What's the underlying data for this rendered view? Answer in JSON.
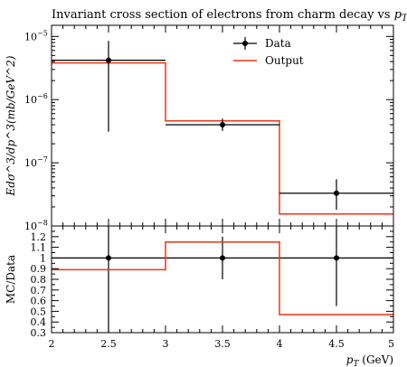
{
  "chart_data": {
    "type": "histogram-with-ratio",
    "title": "Invariant cross section of electrons from charm decay vs $p_T$",
    "title_parts": {
      "text": "Invariant cross section of electrons from charm decay vs ",
      "var": "p",
      "sub": "T"
    },
    "xlabel": "p_T (GeV)",
    "xlabel_parts": {
      "var": "p",
      "sub": "T",
      "unit": " (GeV)"
    },
    "xlim": [
      2,
      5
    ],
    "x_ticks": [
      "2",
      "2.5",
      "3",
      "3.5",
      "4",
      "4.5",
      "5"
    ],
    "x_tick_values": [
      2,
      2.5,
      3,
      3.5,
      4,
      4.5,
      5
    ],
    "main": {
      "ylabel": "Edσ^3/dp^3(mb/GeV^2)",
      "yscale": "log",
      "ylim": [
        1e-08,
        1.5e-05
      ],
      "y_ticks": [
        {
          "value": 1e-08,
          "base": "10",
          "exp": "−8"
        },
        {
          "value": 1e-07,
          "base": "10",
          "exp": "−7"
        },
        {
          "value": 1e-06,
          "base": "10",
          "exp": "−6"
        },
        {
          "value": 1e-05,
          "base": "10",
          "exp": "−5"
        }
      ],
      "legend": {
        "placement": "top-right",
        "entries": [
          {
            "label": "Data",
            "style": "marker-errorbar",
            "color": "#000000"
          },
          {
            "label": "Output",
            "style": "line",
            "color": "#ee3311"
          }
        ]
      },
      "series": [
        {
          "name": "Data",
          "color": "#000000",
          "bins": [
            {
              "x_low": 2,
              "x_high": 3,
              "x": 2.5,
              "y": 4.2e-06,
              "y_low": 3.1e-07,
              "y_high": 8.5e-06
            },
            {
              "x_low": 3,
              "x_high": 4,
              "x": 3.5,
              "y": 4e-07,
              "y_low": 3.2e-07,
              "y_high": 5e-07
            },
            {
              "x_low": 4,
              "x_high": 5,
              "x": 4.5,
              "y": 3.3e-08,
              "y_low": 1.8e-08,
              "y_high": 5.5e-08
            }
          ]
        },
        {
          "name": "Output",
          "color": "#ee3311",
          "bins": [
            {
              "x_low": 2,
              "x_high": 3,
              "y": 3.8e-06
            },
            {
              "x_low": 3,
              "x_high": 4,
              "y": 4.6e-07
            },
            {
              "x_low": 4,
              "x_high": 5,
              "y": 1.55e-08
            }
          ]
        }
      ]
    },
    "ratio": {
      "ylabel": "MC/Data",
      "ylim": [
        0.3,
        1.3
      ],
      "y_ticks": [
        "0.3",
        "0.4",
        "0.5",
        "0.6",
        "0.7",
        "0.8",
        "0.9",
        "1",
        "1.1",
        "1.2"
      ],
      "y_tick_values": [
        0.3,
        0.4,
        0.5,
        0.6,
        0.7,
        0.8,
        0.9,
        1.0,
        1.1,
        1.2
      ],
      "reference": 1.0,
      "data_bands": [
        {
          "x": 2.5,
          "y_low": 0.3,
          "y_high": 1.3
        },
        {
          "x": 3.5,
          "y_low": 0.8,
          "y_high": 1.2
        },
        {
          "x": 4.5,
          "y_low": 0.55,
          "y_high": 1.3
        }
      ],
      "output_bins": [
        {
          "x_low": 2,
          "x_high": 3,
          "y": 0.89
        },
        {
          "x_low": 3,
          "x_high": 4,
          "y": 1.15
        },
        {
          "x_low": 4,
          "x_high": 5,
          "y": 0.47
        }
      ]
    }
  }
}
